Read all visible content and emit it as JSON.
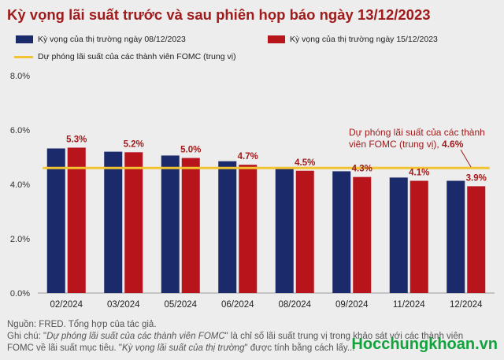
{
  "title": "Kỳ vọng lãi suất trước và sau phiên họp báo ngày 13/12/2023",
  "legend": {
    "series1": "Kỳ vọng của thị trường ngày 08/12/2023",
    "series2": "Kỳ vọng của thị trường ngày 15/12/2023",
    "line": "Dự phóng lãi suất của các thành viên FOMC  (trung vị)"
  },
  "colors": {
    "series1": "#1b2a6b",
    "series2": "#b8141c",
    "line": "#f3c431",
    "title": "#a01b1b",
    "watermark": "#12a33c"
  },
  "annotation": {
    "text_line1": "Dự phóng lãi suất của các thành",
    "text_line2_prefix": "viên FOMC (trung vị), ",
    "text_line2_value": "4.6%"
  },
  "notes": {
    "source": "Nguồn: FRED. Tổng hợp của tác giả.",
    "line2_a": "Ghi chú: \"",
    "line2_em": "Dự phóng lãi suất của các thành viên FOMC",
    "line2_b": "\" là chỉ số lãi suất trung vị trong khảo sát với các thành viên",
    "line3_a": "FOMC về lãi suất mục tiêu. \"",
    "line3_em": "Kỳ vọng lãi suất của thị trường",
    "line3_b": "\" được tính bằng cách lấy..."
  },
  "watermark": "Hocchungkhoan.vn",
  "chart_data": {
    "type": "bar",
    "categories": [
      "02/2024",
      "03/2024",
      "05/2024",
      "06/2024",
      "08/2024",
      "09/2024",
      "11/2024",
      "12/2024"
    ],
    "series": [
      {
        "name": "Kỳ vọng của thị trường ngày 08/12/2023",
        "values": [
          5.32,
          5.2,
          5.06,
          4.85,
          4.6,
          4.48,
          4.25,
          4.13
        ]
      },
      {
        "name": "Kỳ vọng của thị trường ngày 15/12/2023",
        "values": [
          5.35,
          5.18,
          4.97,
          4.72,
          4.5,
          4.27,
          4.13,
          3.93
        ],
        "data_labels": [
          "5.3%",
          "5.2%",
          "5.0%",
          "4.7%",
          "4.5%",
          "4.3%",
          "4.1%",
          "3.9%"
        ]
      }
    ],
    "reference_line": {
      "name": "Dự phóng lãi suất của các thành viên FOMC  (trung vị)",
      "value": 4.6
    },
    "yticks": [
      "0.0%",
      "2.0%",
      "4.0%",
      "6.0%",
      "8.0%"
    ],
    "ylim": [
      0,
      8
    ],
    "grid": false,
    "legend_position": "top"
  }
}
